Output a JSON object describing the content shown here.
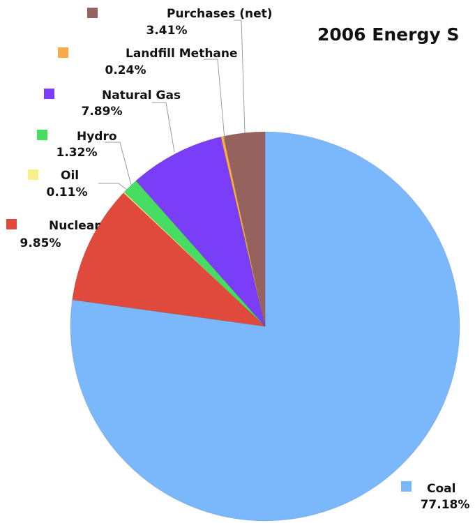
{
  "chart_data": {
    "type": "pie",
    "title": "2006 Energy S",
    "start": "top",
    "direction": "clockwise",
    "legend": "none",
    "slices": [
      {
        "label": "Coal",
        "value": 77.18,
        "value_label": "77.18%",
        "color": "#7ab8fb"
      },
      {
        "label": "Nuclear",
        "value": 9.85,
        "value_label": "9.85%",
        "color": "#e04a3c"
      },
      {
        "label": "Oil",
        "value": 0.11,
        "value_label": "0.11%",
        "color": "#faf08a"
      },
      {
        "label": "Hydro",
        "value": 1.32,
        "value_label": "1.32%",
        "color": "#47dd62"
      },
      {
        "label": "Natural Gas",
        "value": 7.89,
        "value_label": "7.89%",
        "color": "#7b3ef8"
      },
      {
        "label": "Landfill Methane",
        "value": 0.24,
        "value_label": "0.24%",
        "color": "#f9a94a"
      },
      {
        "label": "Purchases (net)",
        "value": 3.41,
        "value_label": "3.41%",
        "color": "#96625e"
      }
    ]
  }
}
